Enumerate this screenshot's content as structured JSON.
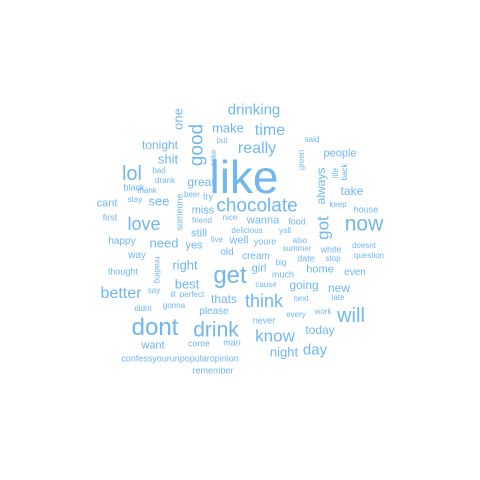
{
  "colors": {
    "text": "#71b7ee",
    "background": "#ffffff"
  },
  "words": [
    {
      "id": "like",
      "text": "like"
    },
    {
      "id": "chocolate",
      "text": "chocolate"
    },
    {
      "id": "dont",
      "text": "dont"
    },
    {
      "id": "now",
      "text": "now"
    },
    {
      "id": "get",
      "text": "get"
    },
    {
      "id": "drink",
      "text": "drink"
    },
    {
      "id": "will",
      "text": "will"
    },
    {
      "id": "love",
      "text": "love"
    },
    {
      "id": "lol",
      "text": "lol"
    },
    {
      "id": "good",
      "text": "good"
    },
    {
      "id": "think",
      "text": "think"
    },
    {
      "id": "know",
      "text": "know"
    },
    {
      "id": "better",
      "text": "better"
    },
    {
      "id": "got",
      "text": "got"
    },
    {
      "id": "time",
      "text": "time"
    },
    {
      "id": "really",
      "text": "really"
    },
    {
      "id": "drinking",
      "text": "drinking"
    },
    {
      "id": "day",
      "text": "day"
    },
    {
      "id": "night",
      "text": "night"
    },
    {
      "id": "make",
      "text": "make"
    },
    {
      "id": "shit",
      "text": "shit"
    },
    {
      "id": "tonight",
      "text": "tonight"
    },
    {
      "id": "one",
      "text": "one"
    },
    {
      "id": "see",
      "text": "see"
    },
    {
      "id": "need",
      "text": "need"
    },
    {
      "id": "right",
      "text": "right"
    },
    {
      "id": "best",
      "text": "best"
    },
    {
      "id": "great",
      "text": "great"
    },
    {
      "id": "always",
      "text": "always"
    },
    {
      "id": "take",
      "text": "take"
    },
    {
      "id": "people",
      "text": "people"
    },
    {
      "id": "going",
      "text": "going"
    },
    {
      "id": "today",
      "text": "today"
    },
    {
      "id": "thats",
      "text": "thats"
    },
    {
      "id": "new",
      "text": "new"
    },
    {
      "id": "home",
      "text": "home"
    },
    {
      "id": "want",
      "text": "want"
    },
    {
      "id": "cant",
      "text": "cant"
    },
    {
      "id": "miss",
      "text": "miss"
    },
    {
      "id": "wanna",
      "text": "wanna"
    },
    {
      "id": "yes",
      "text": "yes"
    },
    {
      "id": "happy",
      "text": "happy"
    },
    {
      "id": "way",
      "text": "way"
    },
    {
      "id": "even",
      "text": "even"
    },
    {
      "id": "girl",
      "text": "girl"
    },
    {
      "id": "still",
      "text": "still"
    },
    {
      "id": "well",
      "text": "well"
    },
    {
      "id": "please",
      "text": "please"
    },
    {
      "id": "old",
      "text": "old"
    },
    {
      "id": "cream",
      "text": "cream"
    },
    {
      "id": "youre",
      "text": "youre"
    },
    {
      "id": "house",
      "text": "house"
    },
    {
      "id": "never",
      "text": "never"
    },
    {
      "id": "thought",
      "text": "thought"
    },
    {
      "id": "first",
      "text": "first"
    },
    {
      "id": "black",
      "text": "black"
    },
    {
      "id": "someone",
      "text": "someone"
    },
    {
      "id": "confess",
      "text": "confessyourunpopularopinion"
    },
    {
      "id": "remember",
      "text": "remember"
    },
    {
      "id": "man",
      "text": "man"
    },
    {
      "id": "come",
      "text": "come"
    },
    {
      "id": "gonna",
      "text": "gonna"
    },
    {
      "id": "perfect",
      "text": "perfect"
    },
    {
      "id": "ill",
      "text": "ill"
    },
    {
      "id": "say",
      "text": "say"
    },
    {
      "id": "didnt",
      "text": "didnt"
    },
    {
      "id": "reading",
      "text": "reading"
    },
    {
      "id": "stay",
      "text": "stay"
    },
    {
      "id": "thank",
      "text": "thank"
    },
    {
      "id": "drank",
      "text": "drank"
    },
    {
      "id": "bad",
      "text": "bad"
    },
    {
      "id": "put",
      "text": "put"
    },
    {
      "id": "cake",
      "text": "cake"
    },
    {
      "id": "beer",
      "text": "beer"
    },
    {
      "id": "try",
      "text": "try"
    },
    {
      "id": "live",
      "text": "live"
    },
    {
      "id": "nice",
      "text": "nice"
    },
    {
      "id": "friend",
      "text": "friend"
    },
    {
      "id": "delicious",
      "text": "delicious"
    },
    {
      "id": "food",
      "text": "food"
    },
    {
      "id": "yall",
      "text": "yall"
    },
    {
      "id": "big",
      "text": "big"
    },
    {
      "id": "cause",
      "text": "cause"
    },
    {
      "id": "much",
      "text": "much"
    },
    {
      "id": "next",
      "text": "next"
    },
    {
      "id": "every",
      "text": "every"
    },
    {
      "id": "work",
      "text": "work"
    },
    {
      "id": "late",
      "text": "late"
    },
    {
      "id": "also",
      "text": "also"
    },
    {
      "id": "summer",
      "text": "summer"
    },
    {
      "id": "date",
      "text": "date"
    },
    {
      "id": "white",
      "text": "white"
    },
    {
      "id": "stop",
      "text": "stop"
    },
    {
      "id": "question",
      "text": "question"
    },
    {
      "id": "doesnt",
      "text": "doesnt"
    },
    {
      "id": "keep",
      "text": "keep"
    },
    {
      "id": "life",
      "text": "life"
    },
    {
      "id": "back",
      "text": "back"
    },
    {
      "id": "said",
      "text": "said"
    },
    {
      "id": "green",
      "text": "green"
    }
  ]
}
